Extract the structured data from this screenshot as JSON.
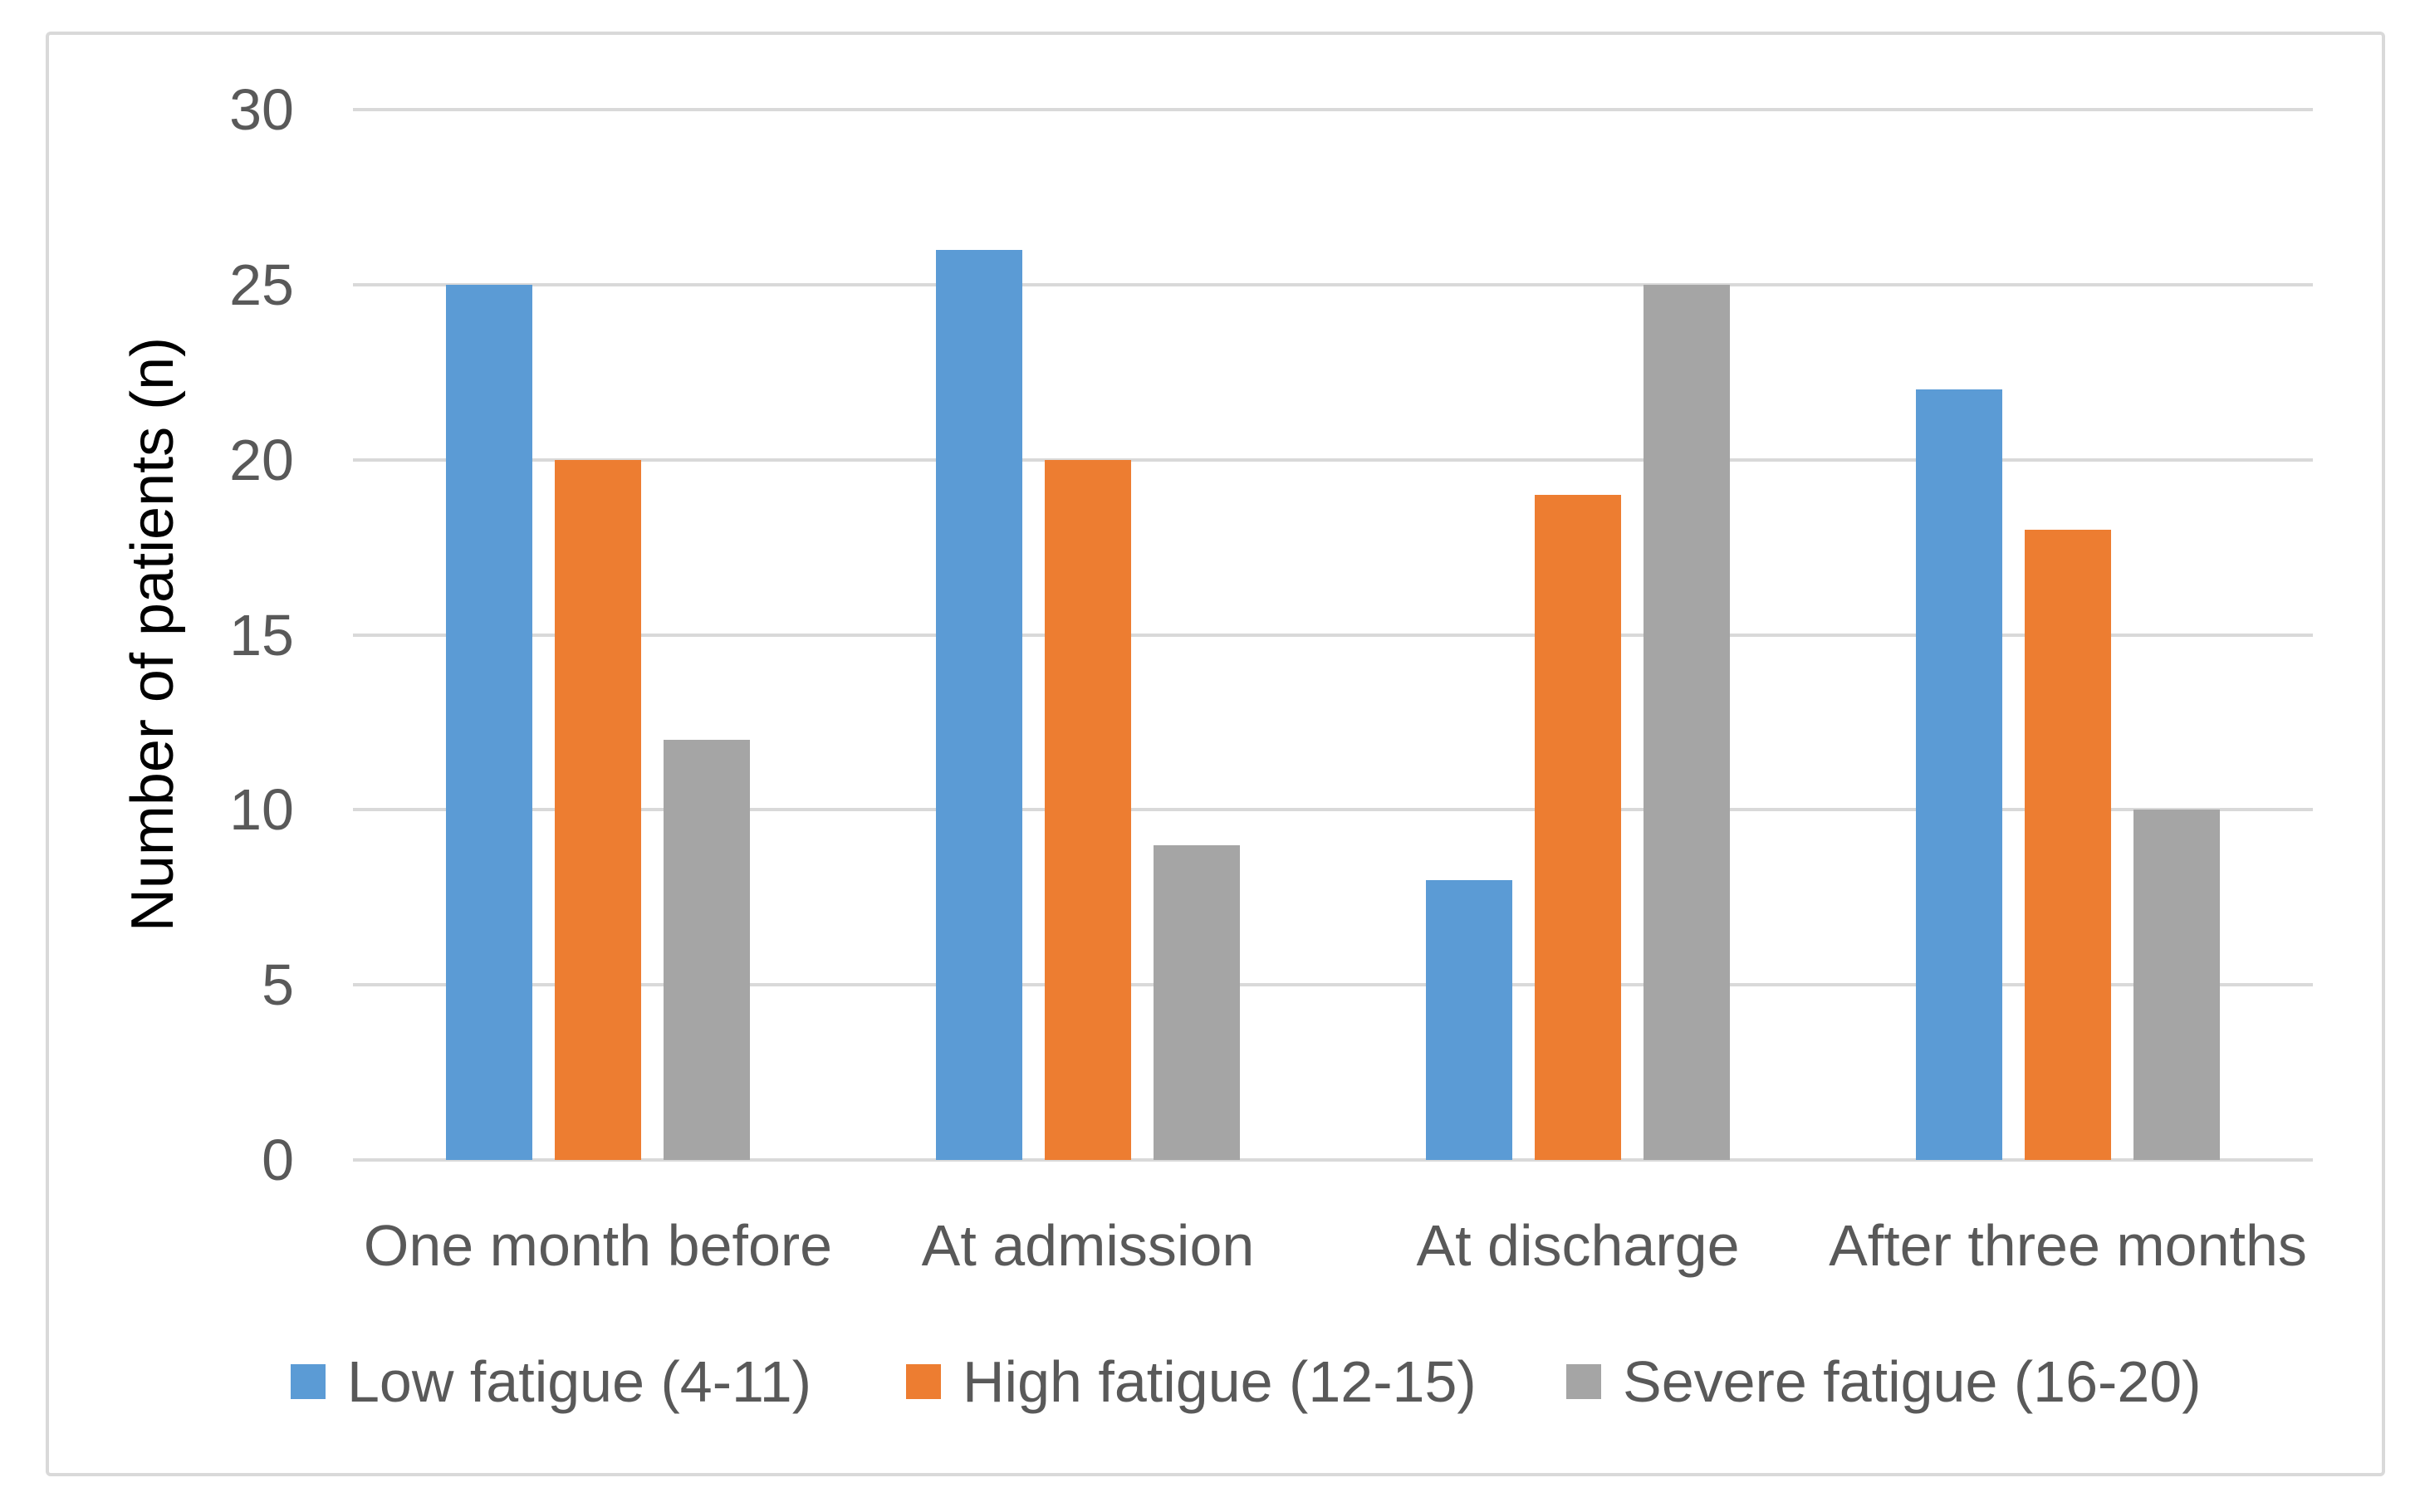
{
  "chart_data": {
    "type": "bar",
    "title": "",
    "categories": [
      "One month before",
      "At admission",
      "At discharge",
      "After three months"
    ],
    "series": [
      {
        "name": "Low fatigue (4-11)",
        "short": "low-fatigue",
        "color": "#5B9BD5",
        "values": [
          25,
          26,
          8,
          22
        ]
      },
      {
        "name": "High fatigue (12-15)",
        "short": "high-fatigue",
        "color": "#ED7D31",
        "values": [
          20,
          20,
          19,
          18
        ]
      },
      {
        "name": "Severe fatigue (16-20)",
        "short": "severe-fatigue",
        "color": "#A5A5A5",
        "values": [
          12,
          9,
          25,
          10
        ]
      }
    ],
    "xlabel": "",
    "ylabel": "Number of patients (n)",
    "ylim": [
      0,
      30
    ],
    "yticks": [
      30,
      25,
      20,
      15,
      10,
      5,
      0
    ],
    "grid": true,
    "legend_position": "bottom"
  },
  "colors": {
    "gridline": "#D9D9D9",
    "border": "#D9D9D9",
    "tick_text": "#595959",
    "axis_title_text": "#000000",
    "background": "#FFFFFF"
  }
}
